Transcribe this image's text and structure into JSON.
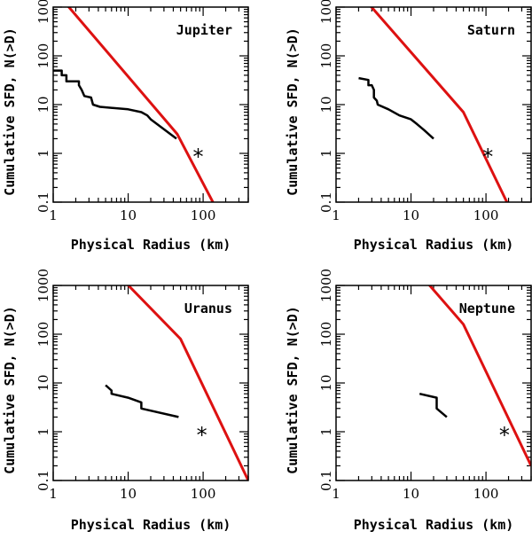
{
  "colors": {
    "model": "#dd1111",
    "observed": "#000000",
    "frame": "#000000"
  },
  "chart_data": [
    {
      "type": "line",
      "title": "Jupiter",
      "xlabel": "Physical Radius (km)",
      "ylabel": "Cumulative SFD, N(>D)",
      "xscale": "log",
      "yscale": "log",
      "xlim": [
        1,
        400
      ],
      "ylim": [
        0.1,
        1000
      ],
      "xticklabels": [
        "1",
        "10",
        "100"
      ],
      "yticklabels": [
        "0.1",
        "1",
        "10",
        "100",
        "1000"
      ],
      "series": [
        {
          "role": "model",
          "points": [
            [
              1.1,
              2000
            ],
            [
              45,
              2.5
            ],
            [
              135,
              0.1
            ]
          ]
        },
        {
          "role": "observed",
          "points": [
            [
              1.0,
              50
            ],
            [
              1.3,
              50
            ],
            [
              1.3,
              40
            ],
            [
              1.5,
              40
            ],
            [
              1.5,
              30
            ],
            [
              2.2,
              30
            ],
            [
              2.2,
              25
            ],
            [
              2.4,
              20
            ],
            [
              2.6,
              15
            ],
            [
              3.2,
              14
            ],
            [
              3.4,
              10
            ],
            [
              4.2,
              9
            ],
            [
              10,
              8
            ],
            [
              15,
              7
            ],
            [
              18,
              6
            ],
            [
              20,
              5
            ],
            [
              44,
              2
            ]
          ]
        },
        {
          "role": "star",
          "points": [
            [
              86,
              1.0
            ]
          ]
        }
      ]
    },
    {
      "type": "line",
      "title": "Saturn",
      "xlabel": "Physical Radius (km)",
      "ylabel": "Cumulative SFD, N(>D)",
      "xscale": "log",
      "yscale": "log",
      "xlim": [
        1,
        400
      ],
      "ylim": [
        0.1,
        1000
      ],
      "xticklabels": [
        "1",
        "10",
        "100"
      ],
      "yticklabels": [
        "0.1",
        "1",
        "10",
        "100",
        "1000"
      ],
      "series": [
        {
          "role": "model",
          "points": [
            [
              2,
              2000
            ],
            [
              50,
              7
            ],
            [
              190,
              0.1
            ]
          ]
        },
        {
          "role": "observed",
          "points": [
            [
              2.0,
              35
            ],
            [
              2.7,
              32
            ],
            [
              2.7,
              25
            ],
            [
              3.0,
              25
            ],
            [
              3.2,
              20
            ],
            [
              3.2,
              14
            ],
            [
              3.5,
              12
            ],
            [
              3.6,
              10
            ],
            [
              5,
              8
            ],
            [
              7,
              6
            ],
            [
              10,
              5
            ],
            [
              12,
              4
            ],
            [
              15,
              3
            ],
            [
              20,
              2
            ]
          ]
        },
        {
          "role": "star",
          "points": [
            [
              106,
              1.0
            ]
          ]
        }
      ]
    },
    {
      "type": "line",
      "title": "Uranus",
      "xlabel": "Physical Radius (km)",
      "ylabel": "Cumulative SFD, N(>D)",
      "xscale": "log",
      "yscale": "log",
      "xlim": [
        1,
        400
      ],
      "ylim": [
        0.1,
        1000
      ],
      "xticklabels": [
        "1",
        "10",
        "100"
      ],
      "yticklabels": [
        "0.1",
        "1",
        "10",
        "100",
        "1000"
      ],
      "series": [
        {
          "role": "model",
          "points": [
            [
              6.5,
              2000
            ],
            [
              50,
              80
            ],
            [
              400,
              0.1
            ]
          ]
        },
        {
          "role": "observed",
          "points": [
            [
              5,
              9
            ],
            [
              6,
              7
            ],
            [
              6,
              6
            ],
            [
              10,
              5
            ],
            [
              15,
              4
            ],
            [
              15,
              3
            ],
            [
              47,
              2
            ]
          ]
        },
        {
          "role": "star",
          "points": [
            [
              96,
              1.0
            ]
          ]
        }
      ]
    },
    {
      "type": "line",
      "title": "Neptune",
      "xlabel": "Physical Radius (km)",
      "ylabel": "Cumulative SFD, N(>D)",
      "xscale": "log",
      "yscale": "log",
      "xlim": [
        1,
        400
      ],
      "ylim": [
        0.1,
        1000
      ],
      "xticklabels": [
        "1",
        "10",
        "100"
      ],
      "yticklabels": [
        "0.1",
        "1",
        "10",
        "100",
        "1000"
      ],
      "series": [
        {
          "role": "model",
          "points": [
            [
              12,
              2000
            ],
            [
              50,
              160
            ],
            [
              400,
              0.2
            ]
          ]
        },
        {
          "role": "observed",
          "points": [
            [
              13,
              6
            ],
            [
              22,
              5
            ],
            [
              22,
              3
            ],
            [
              30,
              2
            ]
          ]
        },
        {
          "role": "star",
          "points": [
            [
              176,
              1.0
            ]
          ]
        }
      ]
    }
  ]
}
